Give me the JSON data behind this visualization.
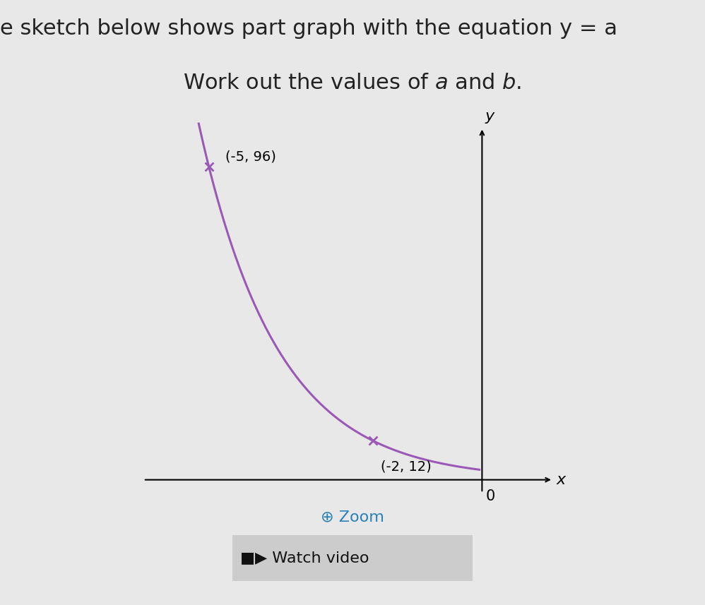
{
  "background_color": "#e8e8e8",
  "title_text": "Work out the values of à and á.",
  "title_fontsize": 22,
  "header_text": "e sketch below shows part graph with the equation y = a",
  "header_fontsize": 22,
  "curve_color": "#9b59b6",
  "axis_color": "#000000",
  "point1": [
    -5,
    96
  ],
  "point2": [
    -2,
    12
  ],
  "point1_label": "(-5, 96)",
  "point2_label": "(-2, 12)",
  "zoom_text": "Zoom",
  "zoom_fontsize": 16,
  "watch_text": "Watch video",
  "watch_fontsize": 16,
  "xlim": [
    -6.5,
    1.5
  ],
  "ylim": [
    -5,
    110
  ],
  "axis_origin_x": 0,
  "axis_origin_y": 0
}
